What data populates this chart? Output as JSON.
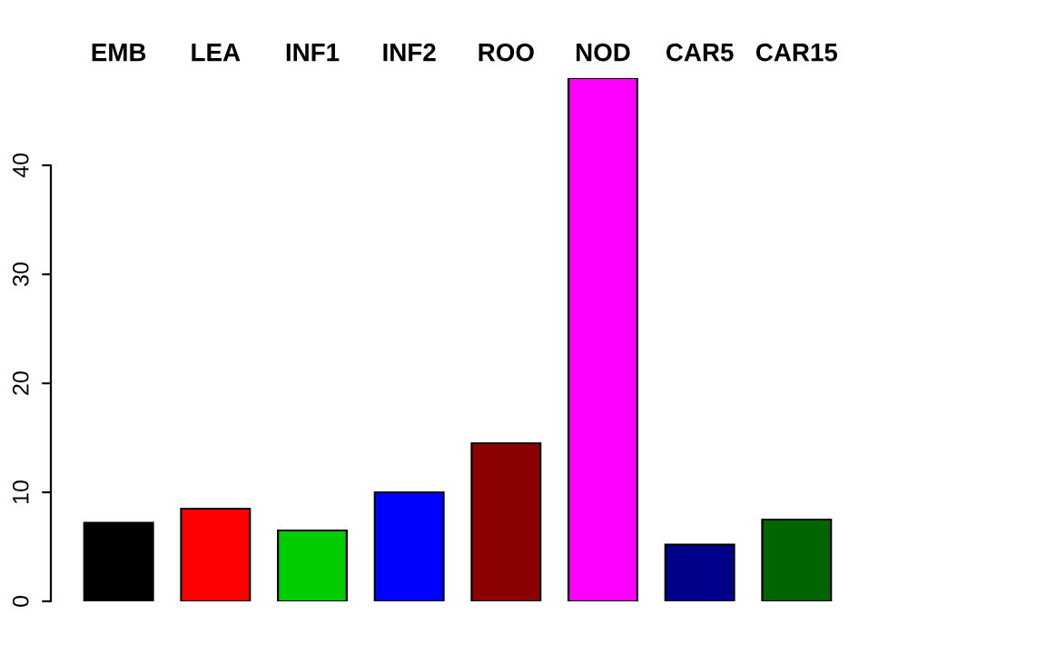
{
  "chart_data": {
    "type": "bar",
    "categories": [
      "EMB",
      "LEA",
      "INF1",
      "INF2",
      "ROO",
      "NOD",
      "CAR5",
      "CAR15"
    ],
    "values": [
      7.2,
      8.5,
      6.5,
      10,
      14.5,
      48,
      5.2,
      7.5
    ],
    "colors": [
      "#000000",
      "#ff0000",
      "#00cd00",
      "#0000ff",
      "#8b0000",
      "#ff00ff",
      "#00008b",
      "#006400"
    ],
    "ylim": [
      0,
      48
    ],
    "yticks": [
      0,
      10,
      20,
      30,
      40
    ],
    "grid": false,
    "tick_labels": "y"
  }
}
